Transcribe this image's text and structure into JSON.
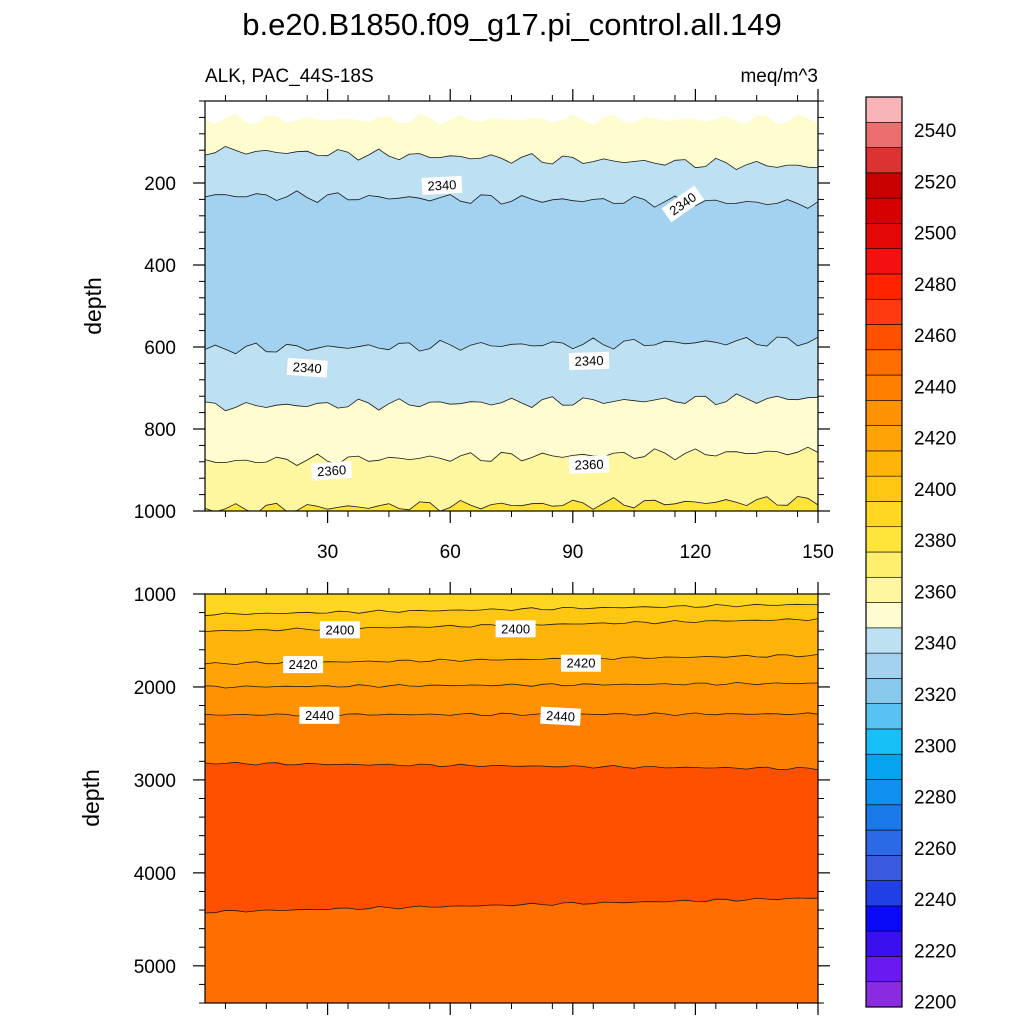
{
  "title": "b.e20.B1850.f09_g17.pi_control.all.149",
  "subtitle_left": "ALK, PAC_44S-18S",
  "subtitle_right": "meq/m^3",
  "chart_data": [
    {
      "type": "heatmap",
      "panel": "upper",
      "ylabel": "depth",
      "xlabel": "",
      "xlim": [
        0,
        150
      ],
      "ylim": [
        1000,
        0
      ],
      "x_ticks": [
        30,
        60,
        90,
        120,
        150
      ],
      "y_ticks": [
        200,
        400,
        600,
        800,
        1000
      ],
      "x": [
        0,
        150
      ],
      "bands": [
        {
          "top": [
            45,
            45
          ],
          "bottom": [
            120,
            160
          ],
          "value": 2355
        },
        {
          "top": [
            120,
            160
          ],
          "bottom": [
            230,
            250
          ],
          "value": 2345
        },
        {
          "top": [
            230,
            250
          ],
          "bottom": [
            605,
            585
          ],
          "value": 2335
        },
        {
          "top": [
            605,
            585
          ],
          "bottom": [
            745,
            725
          ],
          "value": 2345
        },
        {
          "top": [
            745,
            725
          ],
          "bottom": [
            880,
            855
          ],
          "value": 2355
        },
        {
          "top": [
            880,
            855
          ],
          "bottom": [
            995,
            975
          ],
          "value": 2365
        },
        {
          "top": [
            995,
            975
          ],
          "bottom": [
            1000,
            1000
          ],
          "value": 2375
        }
      ],
      "contour_labels": [
        {
          "text": "2340",
          "x": 58,
          "y": 207,
          "angle": -3
        },
        {
          "text": "2340",
          "x": 117,
          "y": 252,
          "angle": -35
        },
        {
          "text": "2340",
          "x": 25,
          "y": 652,
          "angle": 4
        },
        {
          "text": "2340",
          "x": 94,
          "y": 635,
          "angle": -2
        },
        {
          "text": "2360",
          "x": 31,
          "y": 903,
          "angle": -4
        },
        {
          "text": "2360",
          "x": 94,
          "y": 888,
          "angle": -2
        }
      ]
    },
    {
      "type": "heatmap",
      "panel": "lower",
      "ylabel": "depth",
      "xlabel": "",
      "xlim": [
        0,
        150
      ],
      "ylim": [
        5400,
        1000
      ],
      "x_ticks": [
        30,
        60,
        90,
        120,
        150
      ],
      "y_ticks": [
        1000,
        2000,
        3000,
        4000,
        5000
      ],
      "x": [
        0,
        150
      ],
      "bands": [
        {
          "top": [
            1000,
            1000
          ],
          "bottom": [
            1220,
            1110
          ],
          "value": 2385
        },
        {
          "top": [
            1220,
            1110
          ],
          "bottom": [
            1400,
            1270
          ],
          "value": 2395
        },
        {
          "top": [
            1400,
            1270
          ],
          "bottom": [
            1750,
            1660
          ],
          "value": 2405
        },
        {
          "top": [
            1750,
            1660
          ],
          "bottom": [
            2000,
            1960
          ],
          "value": 2415
        },
        {
          "top": [
            2000,
            1960
          ],
          "bottom": [
            2300,
            2290
          ],
          "value": 2425
        },
        {
          "top": [
            2300,
            2290
          ],
          "bottom": [
            2820,
            2880
          ],
          "value": 2435
        },
        {
          "top": [
            2820,
            2880
          ],
          "bottom": [
            4420,
            4270
          ],
          "value": 2455
        },
        {
          "top": [
            4420,
            4270
          ],
          "bottom": [
            5400,
            5400
          ],
          "value": 2445
        }
      ],
      "contour_labels": [
        {
          "text": "2400",
          "x": 33,
          "y": 1390,
          "angle": 0
        },
        {
          "text": "2400",
          "x": 76,
          "y": 1380,
          "angle": 0
        },
        {
          "text": "2420",
          "x": 24,
          "y": 1765,
          "angle": 0
        },
        {
          "text": "2420",
          "x": 92,
          "y": 1750,
          "angle": 0
        },
        {
          "text": "2440",
          "x": 28,
          "y": 2310,
          "angle": 0
        },
        {
          "text": "2440",
          "x": 87,
          "y": 2320,
          "angle": 3
        }
      ]
    }
  ],
  "colorbar": {
    "labels": [
      "2200",
      "2220",
      "2240",
      "2260",
      "2280",
      "2300",
      "2320",
      "2340",
      "2360",
      "2380",
      "2400",
      "2420",
      "2440",
      "2460",
      "2480",
      "2500",
      "2520",
      "2540"
    ],
    "colors": [
      "#8a2be2",
      "#6a1af0",
      "#3a10f0",
      "#0a0af8",
      "#2040e6",
      "#3a5ae0",
      "#2a6ae6",
      "#1a7aea",
      "#1090f0",
      "#06a4f0",
      "#18c0f8",
      "#5ac2f2",
      "#88c8ec",
      "#a2d2ef",
      "#bde0f2",
      "#fffcd0",
      "#fff7a0",
      "#ffef6e",
      "#ffe43a",
      "#ffd620",
      "#ffc612",
      "#ffb40a",
      "#ffa306",
      "#ff9202",
      "#ff8000",
      "#ff6e00",
      "#ff5000",
      "#ff3a10",
      "#ff2400",
      "#f41010",
      "#e40808",
      "#d60000",
      "#c80000",
      "#dc3232",
      "#ec6e6e",
      "#f8b4b8"
    ]
  }
}
